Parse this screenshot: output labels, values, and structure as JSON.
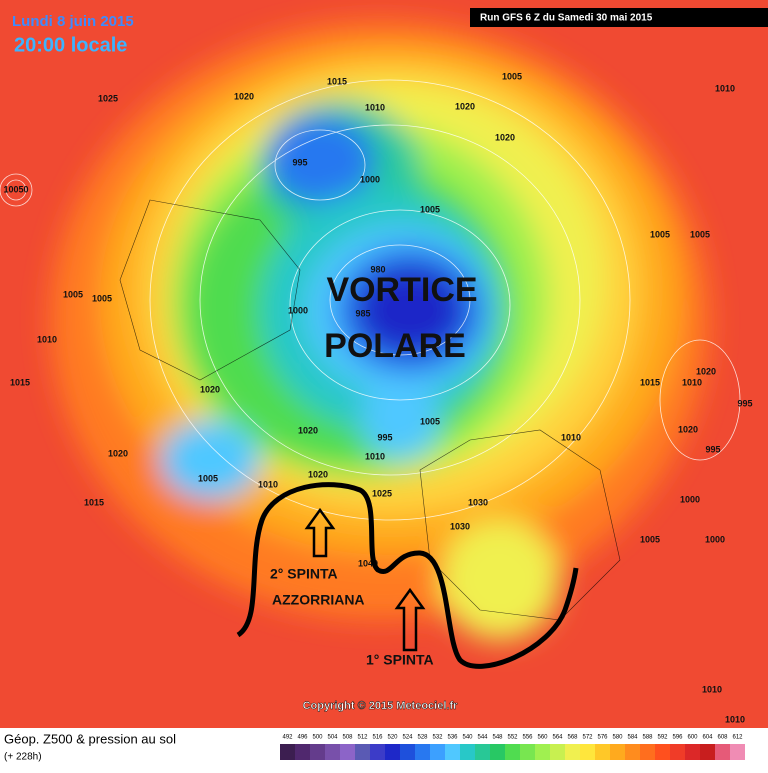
{
  "header": {
    "date": "Lundi 8 juin 2015",
    "time": "20:00 locale",
    "run": "Run GFS 6 Z du Samedi 30 mai 2015"
  },
  "annotations": {
    "vortex": [
      "VORTICE",
      "POLARE"
    ],
    "second_push": [
      "2° SPINTA",
      "AZZORRIANA"
    ],
    "first_push": "1° SPINTA"
  },
  "copyright": "Copyright © 2015 Meteociel.fr",
  "pressure_labels": [
    1015,
    1005,
    1010,
    1025,
    1020,
    1010,
    1020,
    1020,
    995,
    1000,
    10050,
    1005,
    1005,
    1005,
    1005,
    1005,
    1000,
    1010,
    980,
    985,
    1015,
    1020,
    1015,
    1010,
    1020,
    995,
    1005,
    995,
    1020,
    1020,
    1010,
    995,
    1010,
    1020,
    1005,
    1010,
    1020,
    1025,
    1030,
    1000,
    1015,
    1030,
    1005,
    1000,
    1040,
    1010,
    1010
  ],
  "legend": {
    "title": "Géop. Z500 & pression au sol",
    "lead": "(+ 228h)",
    "levels": [
      492,
      496,
      500,
      504,
      508,
      512,
      516,
      520,
      524,
      528,
      532,
      536,
      540,
      544,
      548,
      552,
      556,
      560,
      564,
      568,
      572,
      576,
      580,
      584,
      588,
      592,
      596,
      600,
      604,
      608,
      612
    ],
    "colors": [
      "#3c1e50",
      "#50286e",
      "#643c8c",
      "#7850aa",
      "#8c64c8",
      "#5a5ab4",
      "#3c3cc8",
      "#1e28c8",
      "#1e50dc",
      "#2878f0",
      "#3ca0ff",
      "#50c8ff",
      "#28c8c8",
      "#28c896",
      "#28c864",
      "#50dc50",
      "#78e650",
      "#a0f050",
      "#c8f050",
      "#f0f050",
      "#ffe63c",
      "#ffc828",
      "#ffaa1e",
      "#ff8c1e",
      "#ff6e1e",
      "#ff501e",
      "#f03c28",
      "#dc2828",
      "#c81e1e",
      "#e65a78",
      "#f08cb4"
    ]
  }
}
